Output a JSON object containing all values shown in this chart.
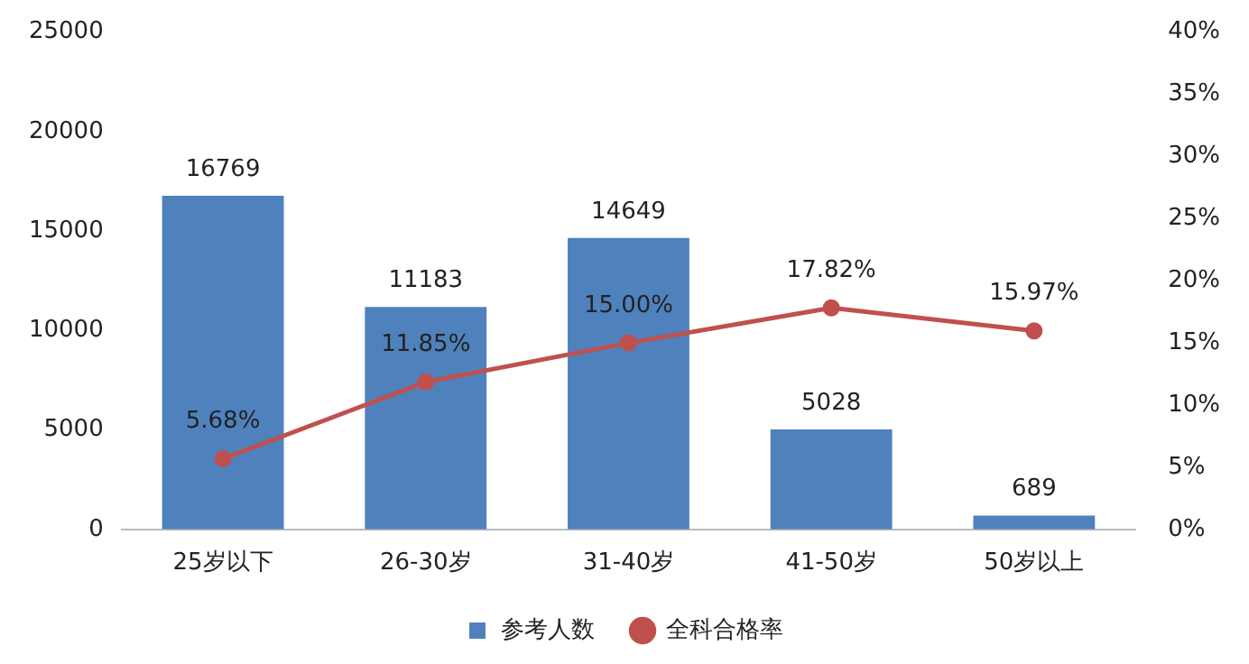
{
  "chart_data": {
    "type": "bar",
    "categories": [
      "25岁以下",
      "26-30岁",
      "31-40岁",
      "41-50岁",
      "50岁以上"
    ],
    "series": [
      {
        "name": "参考人数",
        "color": "#4f81bd",
        "values": [
          16769,
          11183,
          14649,
          5028,
          689
        ],
        "value_labels": [
          "16769",
          "11183",
          "14649",
          "5028",
          "689"
        ]
      },
      {
        "name": "全科合格率",
        "type": "line",
        "axis": "y2",
        "color": "#c0504d",
        "marker": "circle",
        "values": [
          5.68,
          11.85,
          15.0,
          17.82,
          15.97
        ],
        "value_labels": [
          "5.68%",
          "11.85%",
          "15.00%",
          "17.82%",
          "15.97%"
        ]
      }
    ],
    "ylim": [
      0,
      25000
    ],
    "yticks": [
      0,
      5000,
      10000,
      15000,
      20000,
      25000
    ],
    "y2lim": [
      0,
      40
    ],
    "y2ticks": [
      {
        "value": 0,
        "label": "0%"
      },
      {
        "value": 5,
        "label": "5%"
      },
      {
        "value": 10,
        "label": "10%"
      },
      {
        "value": 15,
        "label": "15%"
      },
      {
        "value": 20,
        "label": "20%"
      },
      {
        "value": 25,
        "label": "25%"
      },
      {
        "value": 30,
        "label": "30%"
      },
      {
        "value": 35,
        "label": "35%"
      },
      {
        "value": 40,
        "label": "40%"
      }
    ],
    "grid": false,
    "legend": "bottom"
  }
}
